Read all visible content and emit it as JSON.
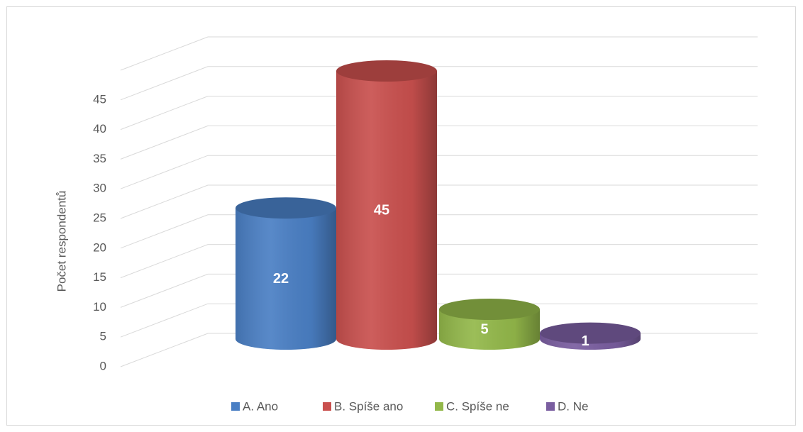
{
  "chart_data": {
    "type": "cylinder-bar",
    "y_label": "Počet respondentů",
    "series": [
      {
        "name": "A. Ano",
        "color": "#4a7fc4",
        "values": [
          22
        ]
      },
      {
        "name": "B. Spíše ano",
        "color": "#c9504e",
        "values": [
          45
        ]
      },
      {
        "name": "C. Spíše ne",
        "color": "#93b84a",
        "values": [
          5
        ]
      },
      {
        "name": "D. Ne",
        "color": "#7a5ea0",
        "values": [
          1
        ]
      }
    ],
    "ylim": [
      0,
      50
    ],
    "yticks": [
      0,
      5,
      10,
      15,
      20,
      25,
      30,
      35,
      40,
      45
    ],
    "grid": true,
    "legend": "bottom"
  }
}
